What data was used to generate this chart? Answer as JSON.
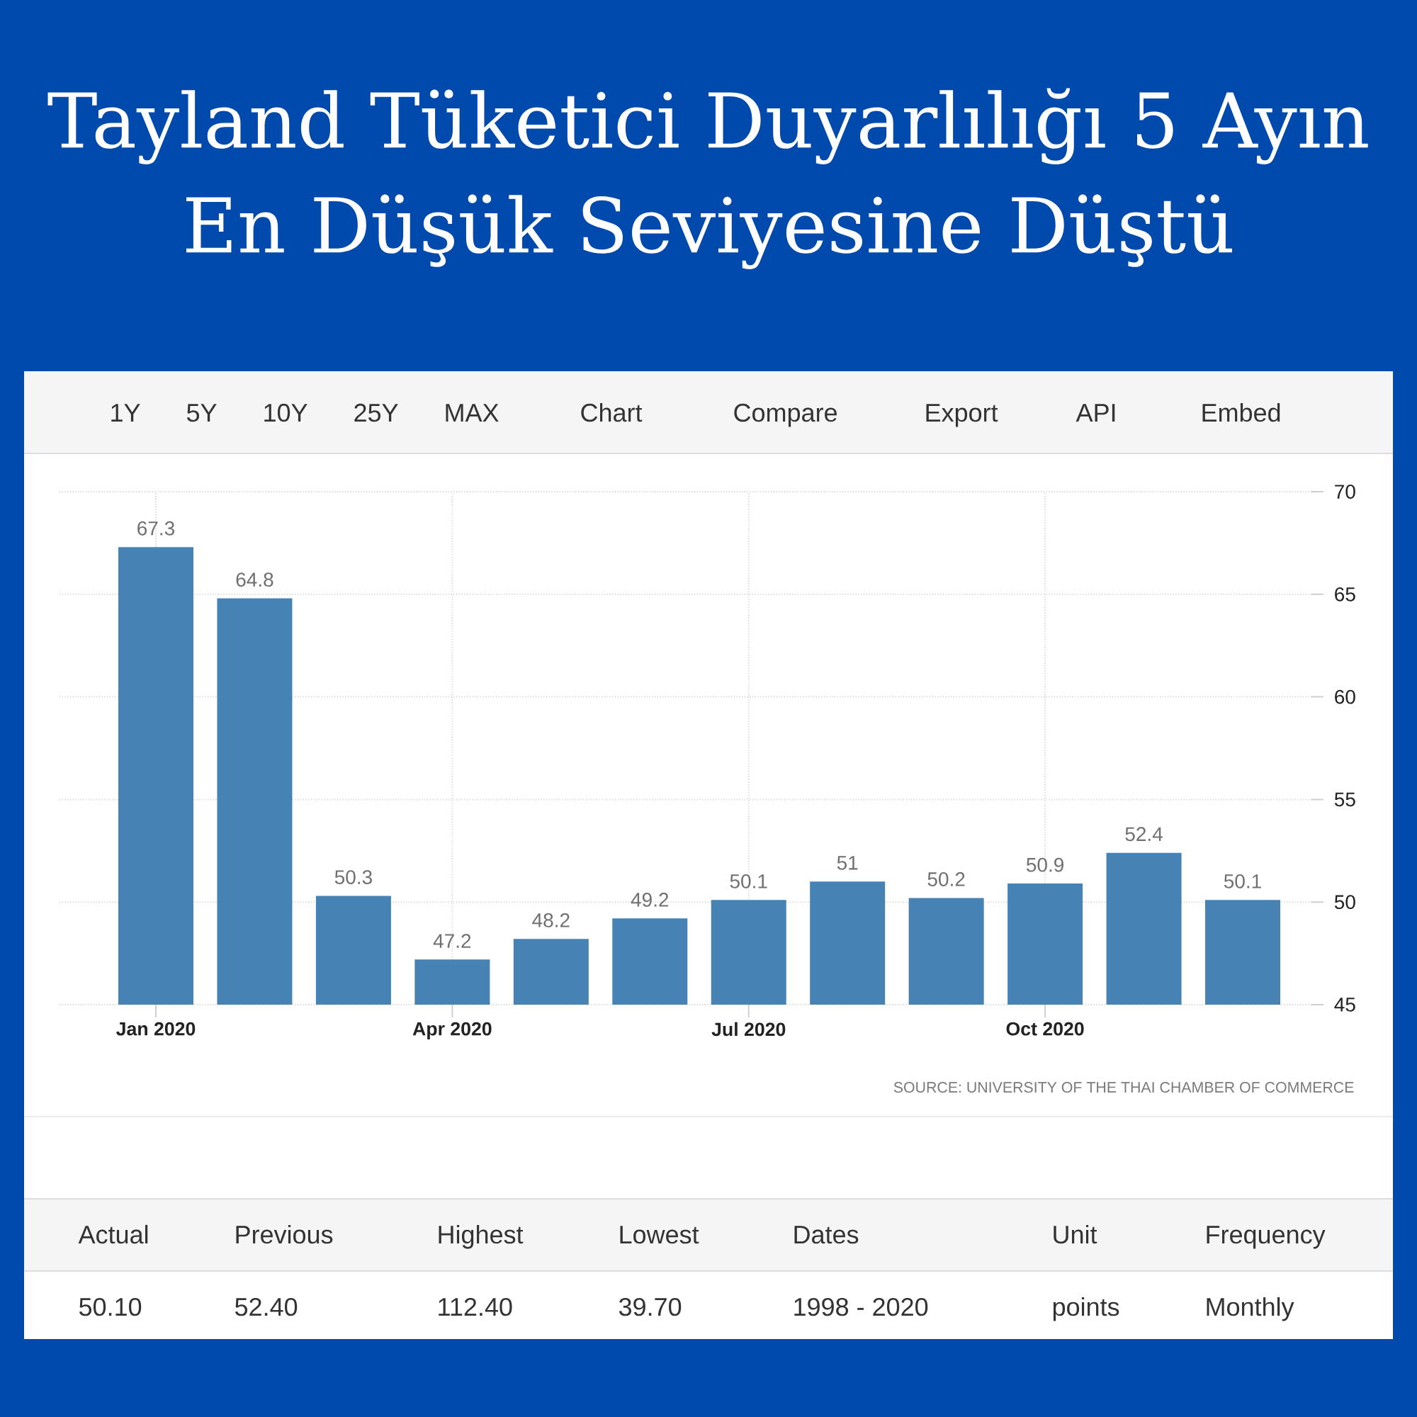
{
  "chart_data": {
    "type": "bar",
    "title": "Tayland Tüketici Duyarlılığı 5 Ayın En Düşük Seviyesine Düştü",
    "categories": [
      "Jan 2020",
      null,
      null,
      "Apr 2020",
      null,
      null,
      "Jul 2020",
      null,
      null,
      "Oct 2020",
      null,
      null
    ],
    "values": [
      67.3,
      64.8,
      50.3,
      47.2,
      48.2,
      49.2,
      50.1,
      51,
      50.2,
      50.9,
      52.4,
      50.1
    ],
    "color": "#4682b4",
    "ylim": [
      45,
      70
    ],
    "yticks": [
      45,
      50,
      55,
      60,
      65,
      70
    ],
    "grid": true,
    "data_labels": true,
    "annotations": [
      "1Y",
      "5Y",
      "10Y",
      "25Y",
      "MAX",
      "Chart",
      "Compare",
      "Export",
      "API",
      "Embed",
      "SOURCE: UNIVERSITY OF THE THAI CHAMBER OF COMMERCE",
      "Actual",
      "Previous",
      "Highest",
      "Lowest",
      "Dates",
      "Unit",
      "Frequency",
      "50.10",
      "52.40",
      "112.40",
      "39.70",
      "1998 - 2020",
      "points",
      "Monthly"
    ]
  }
}
